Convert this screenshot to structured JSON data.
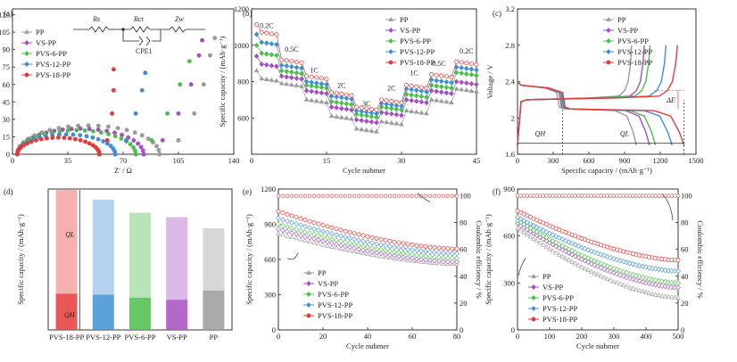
{
  "colors": {
    "PP": "#9b9b9b",
    "VS-PP": "#a64fc0",
    "PVS-6-PP": "#4bbf4b",
    "PVS-12-PP": "#3f8fd6",
    "PVS-18-PP": "#e63a3a"
  },
  "series_names": [
    "PP",
    "VS-PP",
    "PVS-6-PP",
    "PVS-12-PP",
    "PVS-18-PP"
  ],
  "chart_data": [
    {
      "id": "a",
      "panel_label": "(a)",
      "type": "scatter",
      "xlabel": "Z′ / Ω",
      "ylabel": "−Z″ / Ω",
      "xlim": [
        0,
        140
      ],
      "ylim": [
        0,
        125
      ],
      "xticks": [
        0,
        35,
        70,
        105,
        140
      ],
      "yticks": [
        0,
        15,
        30,
        45,
        60,
        75,
        90,
        105,
        120
      ],
      "inset_labels": [
        "Rs",
        "Rct",
        "Zw",
        "CPE1"
      ],
      "semicircles": [
        {
          "name": "PP",
          "rs": 3,
          "rct": 90,
          "tail": [
            [
              93,
              0
            ],
            [
              105,
              12
            ],
            [
              115,
              35
            ],
            [
              121,
              60
            ],
            [
              125,
              85
            ],
            [
              128,
              100
            ]
          ]
        },
        {
          "name": "VS-PP",
          "rs": 3,
          "rct": 80,
          "tail": [
            [
              83,
              0
            ],
            [
              95,
              12
            ],
            [
              105,
              35
            ],
            [
              113,
              60
            ],
            [
              118,
              85
            ],
            [
              120,
              98
            ]
          ]
        },
        {
          "name": "PVS-6-PP",
          "rs": 3,
          "rct": 75,
          "tail": [
            [
              78,
              0
            ],
            [
              88,
              12
            ],
            [
              98,
              35
            ],
            [
              106,
              60
            ],
            [
              112,
              80
            ]
          ]
        },
        {
          "name": "PVS-12-PP",
          "rs": 3,
          "rct": 62,
          "tail": [
            [
              65,
              0
            ],
            [
              72,
              12
            ],
            [
              78,
              35
            ],
            [
              82,
              55
            ],
            [
              84,
              70
            ]
          ]
        },
        {
          "name": "PVS-18-PP",
          "rs": 3,
          "rct": 52,
          "tail": [
            [
              55,
              0
            ],
            [
              60,
              12
            ],
            [
              63,
              35
            ],
            [
              64,
              55
            ],
            [
              64,
              73
            ]
          ]
        }
      ]
    },
    {
      "id": "b",
      "panel_label": "(b)",
      "type": "scatter",
      "xlabel": "Cycle nubmer",
      "ylabel": "Specific capacity / (mAh·g⁻¹)",
      "xlim": [
        0,
        45
      ],
      "ylim": [
        400,
        1200
      ],
      "xticks": [
        0,
        15,
        30,
        45
      ],
      "yticks": [
        600,
        800,
        1000,
        1200
      ],
      "rate_labels": [
        {
          "text": "0.2C",
          "x": 3,
          "y": 1095
        },
        {
          "text": "0.5C",
          "x": 8,
          "y": 965
        },
        {
          "text": "1C",
          "x": 12.5,
          "y": 850
        },
        {
          "text": "2C",
          "x": 18,
          "y": 765
        },
        {
          "text": "3C",
          "x": 23,
          "y": 665
        },
        {
          "text": "2C",
          "x": 28,
          "y": 750
        },
        {
          "text": "1C",
          "x": 32.5,
          "y": 835
        },
        {
          "text": "0.5C",
          "x": 37.5,
          "y": 885
        },
        {
          "text": "0.2C",
          "x": 43,
          "y": 955
        }
      ],
      "x": [
        1,
        2,
        3,
        4,
        5,
        6,
        7,
        8,
        9,
        10,
        11,
        12,
        13,
        14,
        15,
        16,
        17,
        18,
        19,
        20,
        21,
        22,
        23,
        24,
        25,
        26,
        27,
        28,
        29,
        30,
        31,
        32,
        33,
        34,
        35,
        36,
        37,
        38,
        39,
        40,
        41,
        42,
        43,
        44,
        45
      ],
      "series": [
        {
          "name": "PP",
          "level": [
            820,
            790,
            700,
            610,
            540,
            580,
            640,
            700,
            760
          ],
          "start_drop": 40
        },
        {
          "name": "VS-PP",
          "level": [
            900,
            830,
            750,
            660,
            590,
            630,
            700,
            750,
            800
          ],
          "start_drop": 40
        },
        {
          "name": "PVS-6-PP",
          "level": [
            960,
            860,
            780,
            690,
            620,
            660,
            730,
            780,
            850
          ],
          "start_drop": 40
        },
        {
          "name": "PVS-12-PP",
          "level": [
            1020,
            890,
            800,
            720,
            640,
            680,
            760,
            810,
            880
          ],
          "start_drop": 40
        },
        {
          "name": "PVS-18-PP",
          "level": [
            1075,
            920,
            830,
            740,
            660,
            700,
            780,
            840,
            910
          ],
          "start_drop": 40
        }
      ]
    },
    {
      "id": "c",
      "panel_label": "(c)",
      "type": "line",
      "xlabel": "Specific capacity / (mAh·g⁻¹)",
      "ylabel": "Voltage / V",
      "xlim": [
        0,
        1500
      ],
      "ylim": [
        1.6,
        3.2
      ],
      "xticks": [
        0,
        300,
        600,
        900,
        1200,
        1500
      ],
      "yticks": [
        1.6,
        2.0,
        2.4,
        2.8,
        3.2
      ],
      "annotations": [
        "QH",
        "QL",
        "ΔE"
      ],
      "series": [
        {
          "name": "PP",
          "total": 1000,
          "qh": 330
        },
        {
          "name": "VS-PP",
          "total": 1110,
          "qh": 350
        },
        {
          "name": "PVS-6-PP",
          "total": 1160,
          "qh": 360
        },
        {
          "name": "PVS-12-PP",
          "total": 1300,
          "qh": 370
        },
        {
          "name": "PVS-18-PP",
          "total": 1400,
          "qh": 380
        }
      ]
    },
    {
      "id": "d",
      "panel_label": "(d)",
      "type": "bar",
      "xlabel": "",
      "ylabel": "Specific capacity / (mAh·g⁻¹)",
      "ylim": [
        0,
        1400
      ],
      "categories": [
        "PVS-18-PP",
        "PVS-12-PP",
        "PVS-6-PP",
        "VS-PP",
        "PP"
      ],
      "series": [
        {
          "name": "QH",
          "values": [
            360,
            350,
            320,
            300,
            390
          ]
        },
        {
          "name": "QL",
          "values": [
            1030,
            945,
            845,
            820,
            620
          ]
        }
      ],
      "annotations": [
        "QL",
        "QH"
      ]
    },
    {
      "id": "e",
      "panel_label": "(e)",
      "type": "scatter",
      "xlabel": "Cycle nubmer",
      "ylabel": "Specific capacity / (mAh·g⁻¹)",
      "y2label": "Coulombic efficiency / %",
      "xlim": [
        0,
        80
      ],
      "ylim": [
        0,
        1200
      ],
      "y2lim": [
        0,
        105
      ],
      "xticks": [
        0,
        20,
        40,
        60,
        80
      ],
      "yticks": [
        0,
        300,
        600,
        900,
        1200
      ],
      "y2ticks": [
        0,
        20,
        40,
        60,
        80,
        100
      ],
      "series": [
        {
          "name": "PP",
          "start": 820,
          "end": 560
        },
        {
          "name": "VS-PP",
          "start": 860,
          "end": 580
        },
        {
          "name": "PVS-6-PP",
          "start": 900,
          "end": 610
        },
        {
          "name": "PVS-12-PP",
          "start": 950,
          "end": 650
        },
        {
          "name": "PVS-18-PP",
          "start": 1010,
          "end": 690
        }
      ],
      "ce": 99.8
    },
    {
      "id": "f",
      "panel_label": "(f)",
      "type": "scatter",
      "xlabel": "Cycle nubmer",
      "ylabel": "Specific capacity / (mAh·g⁻¹)",
      "y2label": "Coulombic efficiency / %",
      "xlim": [
        0,
        500
      ],
      "ylim": [
        0,
        900
      ],
      "y2lim": [
        0,
        105
      ],
      "xticks": [
        0,
        100,
        200,
        300,
        400,
        500
      ],
      "yticks": [
        0,
        300,
        600,
        900
      ],
      "y2ticks": [
        0,
        20,
        40,
        60,
        80,
        100
      ],
      "series": [
        {
          "name": "PP",
          "start": 650,
          "end": 205
        },
        {
          "name": "VS-PP",
          "start": 680,
          "end": 270
        },
        {
          "name": "PVS-6-PP",
          "start": 700,
          "end": 300
        },
        {
          "name": "PVS-12-PP",
          "start": 720,
          "end": 375
        },
        {
          "name": "PVS-18-PP",
          "start": 760,
          "end": 445
        }
      ],
      "ce": 100
    }
  ]
}
